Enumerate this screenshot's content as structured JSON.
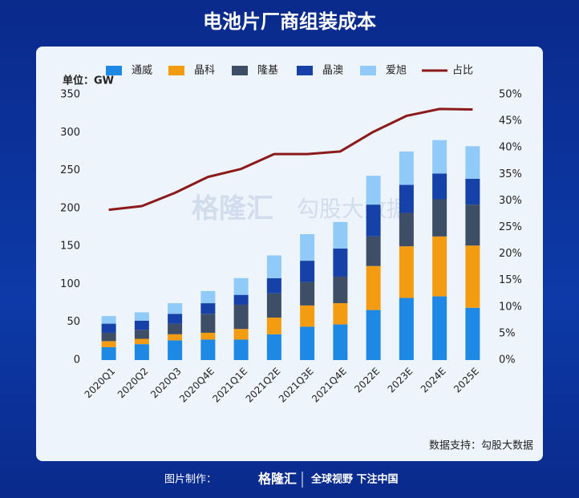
{
  "title": "电池片厂商组装成本",
  "chart_data": {
    "type": "stacked-bar-line",
    "unit_label": "单位：GW",
    "categories": [
      "2020Q1",
      "2020Q2",
      "2020Q3",
      "2020Q4E",
      "2021Q1E",
      "2021Q2E",
      "2021Q3E",
      "2021Q4E",
      "2022E",
      "2023E",
      "2024E",
      "2025E"
    ],
    "series": [
      {
        "name": "通威",
        "color": "#1e88e5",
        "values": [
          17,
          21,
          26,
          27,
          27,
          34,
          44,
          47,
          66,
          82,
          84,
          69
        ]
      },
      {
        "name": "晶科",
        "color": "#f39c12",
        "values": [
          8,
          7,
          8,
          9,
          14,
          22,
          28,
          28,
          58,
          68,
          79,
          82
        ]
      },
      {
        "name": "隆基",
        "color": "#3d4e66",
        "values": [
          11,
          12,
          14,
          25,
          32,
          32,
          31,
          35,
          39,
          44,
          49,
          54
        ]
      },
      {
        "name": "晶澳",
        "color": "#1541a8",
        "values": [
          12,
          12,
          13,
          14,
          13,
          20,
          28,
          37,
          42,
          37,
          34,
          34
        ]
      },
      {
        "name": "爱旭",
        "color": "#90caf9",
        "values": [
          10,
          11,
          14,
          16,
          22,
          30,
          35,
          35,
          38,
          44,
          44,
          43
        ]
      },
      {
        "name": "占比",
        "color": "#8b1a1a",
        "axis": "y2",
        "values": [
          28.3,
          29,
          31.5,
          34.5,
          36,
          38.8,
          38.8,
          39.3,
          43,
          46,
          47.3,
          47.2
        ]
      }
    ],
    "ylim": [
      0,
      350
    ],
    "yticks": [
      0,
      50,
      100,
      150,
      200,
      250,
      300,
      350
    ],
    "y2lim": [
      0,
      50
    ],
    "y2ticks": [
      {
        "value": 0,
        "label": "0%"
      },
      {
        "value": 5,
        "label": "5%"
      },
      {
        "value": 10,
        "label": "10%"
      },
      {
        "value": 15,
        "label": "15%"
      },
      {
        "value": 20,
        "label": "20%"
      },
      {
        "value": 25,
        "label": "25%"
      },
      {
        "value": 30,
        "label": "30%"
      },
      {
        "value": 35,
        "label": "35%"
      },
      {
        "value": 40,
        "label": "40%"
      },
      {
        "value": 45,
        "label": "45%"
      },
      {
        "value": 50,
        "label": "50%"
      }
    ],
    "legend": "top",
    "source": "数据支持：勾股大数据",
    "watermark": [
      "格隆汇",
      "勾股大数据"
    ]
  },
  "footer": {
    "made_by": "图片制作：",
    "logo": "格隆汇",
    "slogan": "全球视野 下注中国"
  }
}
